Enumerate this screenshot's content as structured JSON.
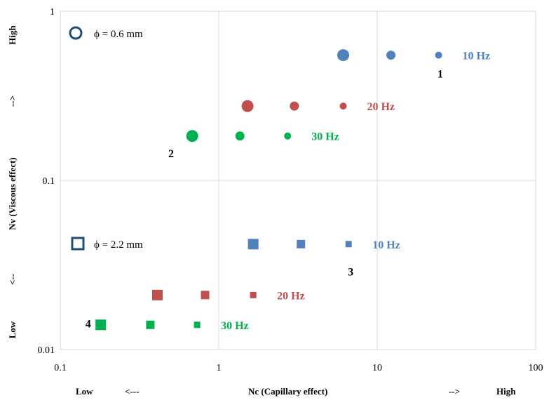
{
  "chart_data": {
    "type": "scatter",
    "x_scale": "log",
    "y_scale": "log",
    "xlim": [
      0.1,
      100
    ],
    "ylim": [
      0.01,
      1
    ],
    "grid": true,
    "x_ticks": [
      "0.1",
      "1",
      "10",
      "100"
    ],
    "y_ticks": [
      "0.01",
      "0.1",
      "1"
    ],
    "xlabel": {
      "low": "Low",
      "low_arrow": "<---",
      "title": "Nc (Capillary effect)",
      "high_arrow": "-->",
      "high": "High"
    },
    "ylabel": {
      "low": "Low",
      "low_arrow": "<--",
      "title": "Nv  (Viscous effect)",
      "high_arrow": "-->",
      "high": "High"
    },
    "legend": [
      {
        "marker": "circle",
        "text": "ϕ = 0.6 mm"
      },
      {
        "marker": "square",
        "text": "ϕ = 2.2 mm"
      }
    ],
    "series": [
      {
        "name": "10 Hz",
        "marker": "circle",
        "color": "#4f81bd",
        "x": [
          6.1,
          12.2,
          24.4
        ],
        "y": [
          0.55,
          0.55,
          0.55
        ]
      },
      {
        "name": "20 Hz",
        "marker": "circle",
        "color": "#c0504d",
        "x": [
          1.52,
          3.0,
          6.1
        ],
        "y": [
          0.275,
          0.275,
          0.275
        ]
      },
      {
        "name": "30 Hz",
        "marker": "circle",
        "color": "#00b050",
        "x": [
          0.68,
          1.36,
          2.72
        ],
        "y": [
          0.183,
          0.183,
          0.183
        ]
      },
      {
        "name": "10 Hz",
        "marker": "square",
        "color": "#4f81bd",
        "x": [
          1.65,
          3.3,
          6.6
        ],
        "y": [
          0.042,
          0.042,
          0.042
        ]
      },
      {
        "name": "20 Hz",
        "marker": "square",
        "color": "#c0504d",
        "x": [
          0.41,
          0.82,
          1.65
        ],
        "y": [
          0.021,
          0.021,
          0.021
        ]
      },
      {
        "name": "30 Hz",
        "marker": "square",
        "color": "#00b050",
        "x": [
          0.18,
          0.37,
          0.73
        ],
        "y": [
          0.014,
          0.014,
          0.014
        ]
      }
    ],
    "annotations": [
      {
        "text": "1",
        "x": 25,
        "y": 0.43
      },
      {
        "text": "2",
        "x": 0.5,
        "y": 0.145
      },
      {
        "text": "3",
        "x": 6.8,
        "y": 0.029
      },
      {
        "text": "4",
        "x": 0.15,
        "y": 0.0143
      }
    ]
  }
}
